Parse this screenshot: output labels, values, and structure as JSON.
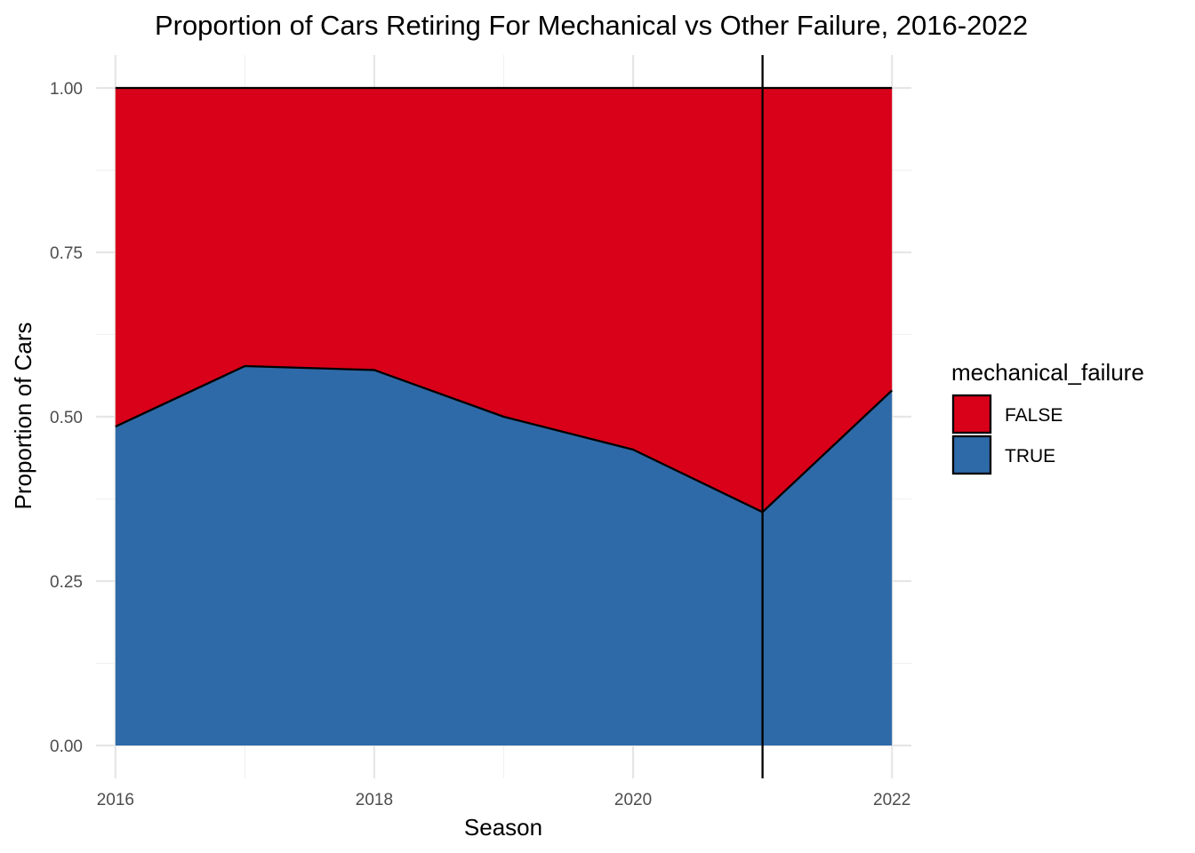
{
  "chart_data": {
    "type": "area",
    "stacked": true,
    "normalized": true,
    "title": "Proportion of Cars Retiring For Mechanical vs Other Failure, 2016-2022",
    "xlabel": "Season",
    "ylabel": "Proportion of Cars",
    "x": [
      2016,
      2017,
      2018,
      2019,
      2020,
      2021,
      2022
    ],
    "xlim": [
      2015.85,
      2022.15
    ],
    "ylim": [
      -0.05,
      1.05
    ],
    "x_ticks": [
      2016,
      2018,
      2020,
      2022
    ],
    "x_tick_labels": [
      "2016",
      "2018",
      "2020",
      "2022"
    ],
    "y_ticks": [
      0,
      0.25,
      0.5,
      0.75,
      1
    ],
    "y_tick_labels": [
      "0.00",
      "0.25",
      "0.50",
      "0.75",
      "1.00"
    ],
    "series": [
      {
        "name": "TRUE",
        "color": "#2e6aa8",
        "values": [
          0.485,
          0.577,
          0.571,
          0.5,
          0.45,
          0.355,
          0.54
        ]
      },
      {
        "name": "FALSE",
        "color": "#d90019",
        "values": [
          0.515,
          0.423,
          0.429,
          0.5,
          0.55,
          0.645,
          0.46
        ]
      }
    ],
    "vline": 2021,
    "grid": true,
    "legend": {
      "title": "mechanical_failure",
      "position": "right",
      "entries": [
        {
          "label": "FALSE",
          "color": "#d90019"
        },
        {
          "label": "TRUE",
          "color": "#2e6aa8"
        }
      ]
    }
  }
}
